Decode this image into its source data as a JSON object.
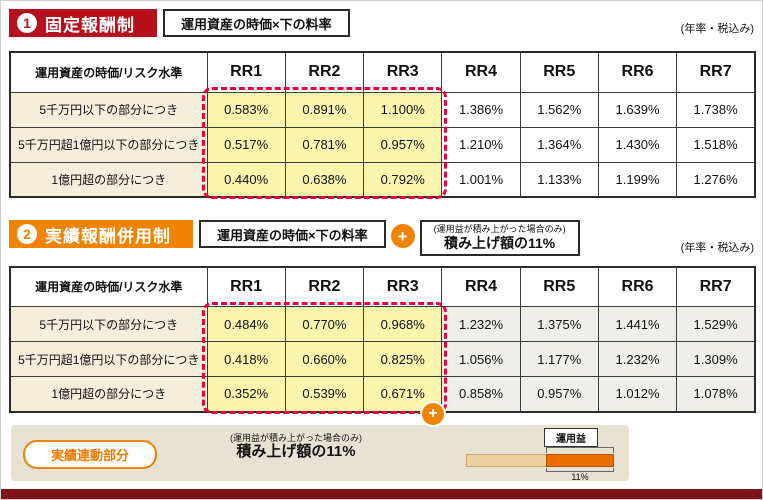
{
  "section1": {
    "number": "1",
    "title": "固定報酬制",
    "formula": "運用資産の時価×下の料率",
    "rate_note": "(年率・税込み)",
    "table": {
      "col0_header": "運用資産の時価/リスク水準",
      "risk_levels": [
        "RR1",
        "RR2",
        "RR3",
        "RR4",
        "RR5",
        "RR6",
        "RR7"
      ],
      "rows": [
        {
          "label": "5千万円以下の部分につき",
          "values": [
            "0.583%",
            "0.891%",
            "1.100%",
            "1.386%",
            "1.562%",
            "1.639%",
            "1.738%"
          ]
        },
        {
          "label": "5千万円超1億円以下の部分につき",
          "values": [
            "0.517%",
            "0.781%",
            "0.957%",
            "1.210%",
            "1.364%",
            "1.430%",
            "1.518%"
          ]
        },
        {
          "label": "1億円超の部分につき",
          "values": [
            "0.440%",
            "0.638%",
            "0.792%",
            "1.001%",
            "1.133%",
            "1.199%",
            "1.276%"
          ]
        }
      ]
    }
  },
  "section2": {
    "number": "2",
    "title": "実績報酬併用制",
    "formula": "運用資産の時価×下の料率",
    "plus": "+",
    "perf_note_small": "(運用益が積み上がった場合のみ)",
    "perf_note_bold": "積み上げ額の11%",
    "rate_note": "(年率・税込み)",
    "table": {
      "col0_header": "運用資産の時価/リスク水準",
      "risk_levels": [
        "RR1",
        "RR2",
        "RR3",
        "RR4",
        "RR5",
        "RR6",
        "RR7"
      ],
      "rows": [
        {
          "label": "5千万円以下の部分につき",
          "values": [
            "0.484%",
            "0.770%",
            "0.968%",
            "1.232%",
            "1.375%",
            "1.441%",
            "1.529%"
          ]
        },
        {
          "label": "5千万円超1億円以下の部分につき",
          "values": [
            "0.418%",
            "0.660%",
            "0.825%",
            "1.056%",
            "1.177%",
            "1.232%",
            "1.309%"
          ]
        },
        {
          "label": "1億円超の部分につき",
          "values": [
            "0.352%",
            "0.539%",
            "0.671%",
            "0.858%",
            "0.957%",
            "1.012%",
            "1.078%"
          ]
        }
      ]
    }
  },
  "footer": {
    "plus": "+",
    "badge": "実績連動部分",
    "note_small": "(運用益が積み上がった場合のみ)",
    "note_bold": "積み上げ額の11%",
    "bar_label": "運用益",
    "percent_label": "11%"
  },
  "colors": {
    "section1_banner": "#b5101c",
    "section2_banner": "#f08300",
    "highlight_yellow": "#fbf5ae",
    "dashed_border_red": "#e8003d",
    "row_label_beige": "#f4eeda",
    "gain_bar_orange": "#eb6d00",
    "footer_bar_maroon": "#7d1418"
  }
}
